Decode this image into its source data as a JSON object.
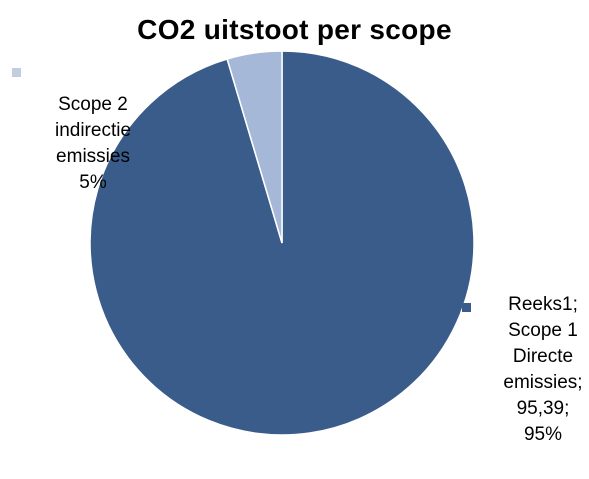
{
  "chart_data": {
    "type": "pie",
    "title": "CO2 uitstoot per scope",
    "slices": [
      {
        "category": "Scope 1 Directe emissies",
        "value": 95.39,
        "percent": 95,
        "color": "#3a5c8a",
        "label": "Reeks1;\nScope 1\nDirecte\nemissies;\n95,39;\n95%"
      },
      {
        "category": "Scope 2 indirectie emissies",
        "value": 4.61,
        "percent": 5,
        "color": "#a6b8d8",
        "label": "Scope 2\nindirectie\nemissies\n5%"
      }
    ]
  }
}
